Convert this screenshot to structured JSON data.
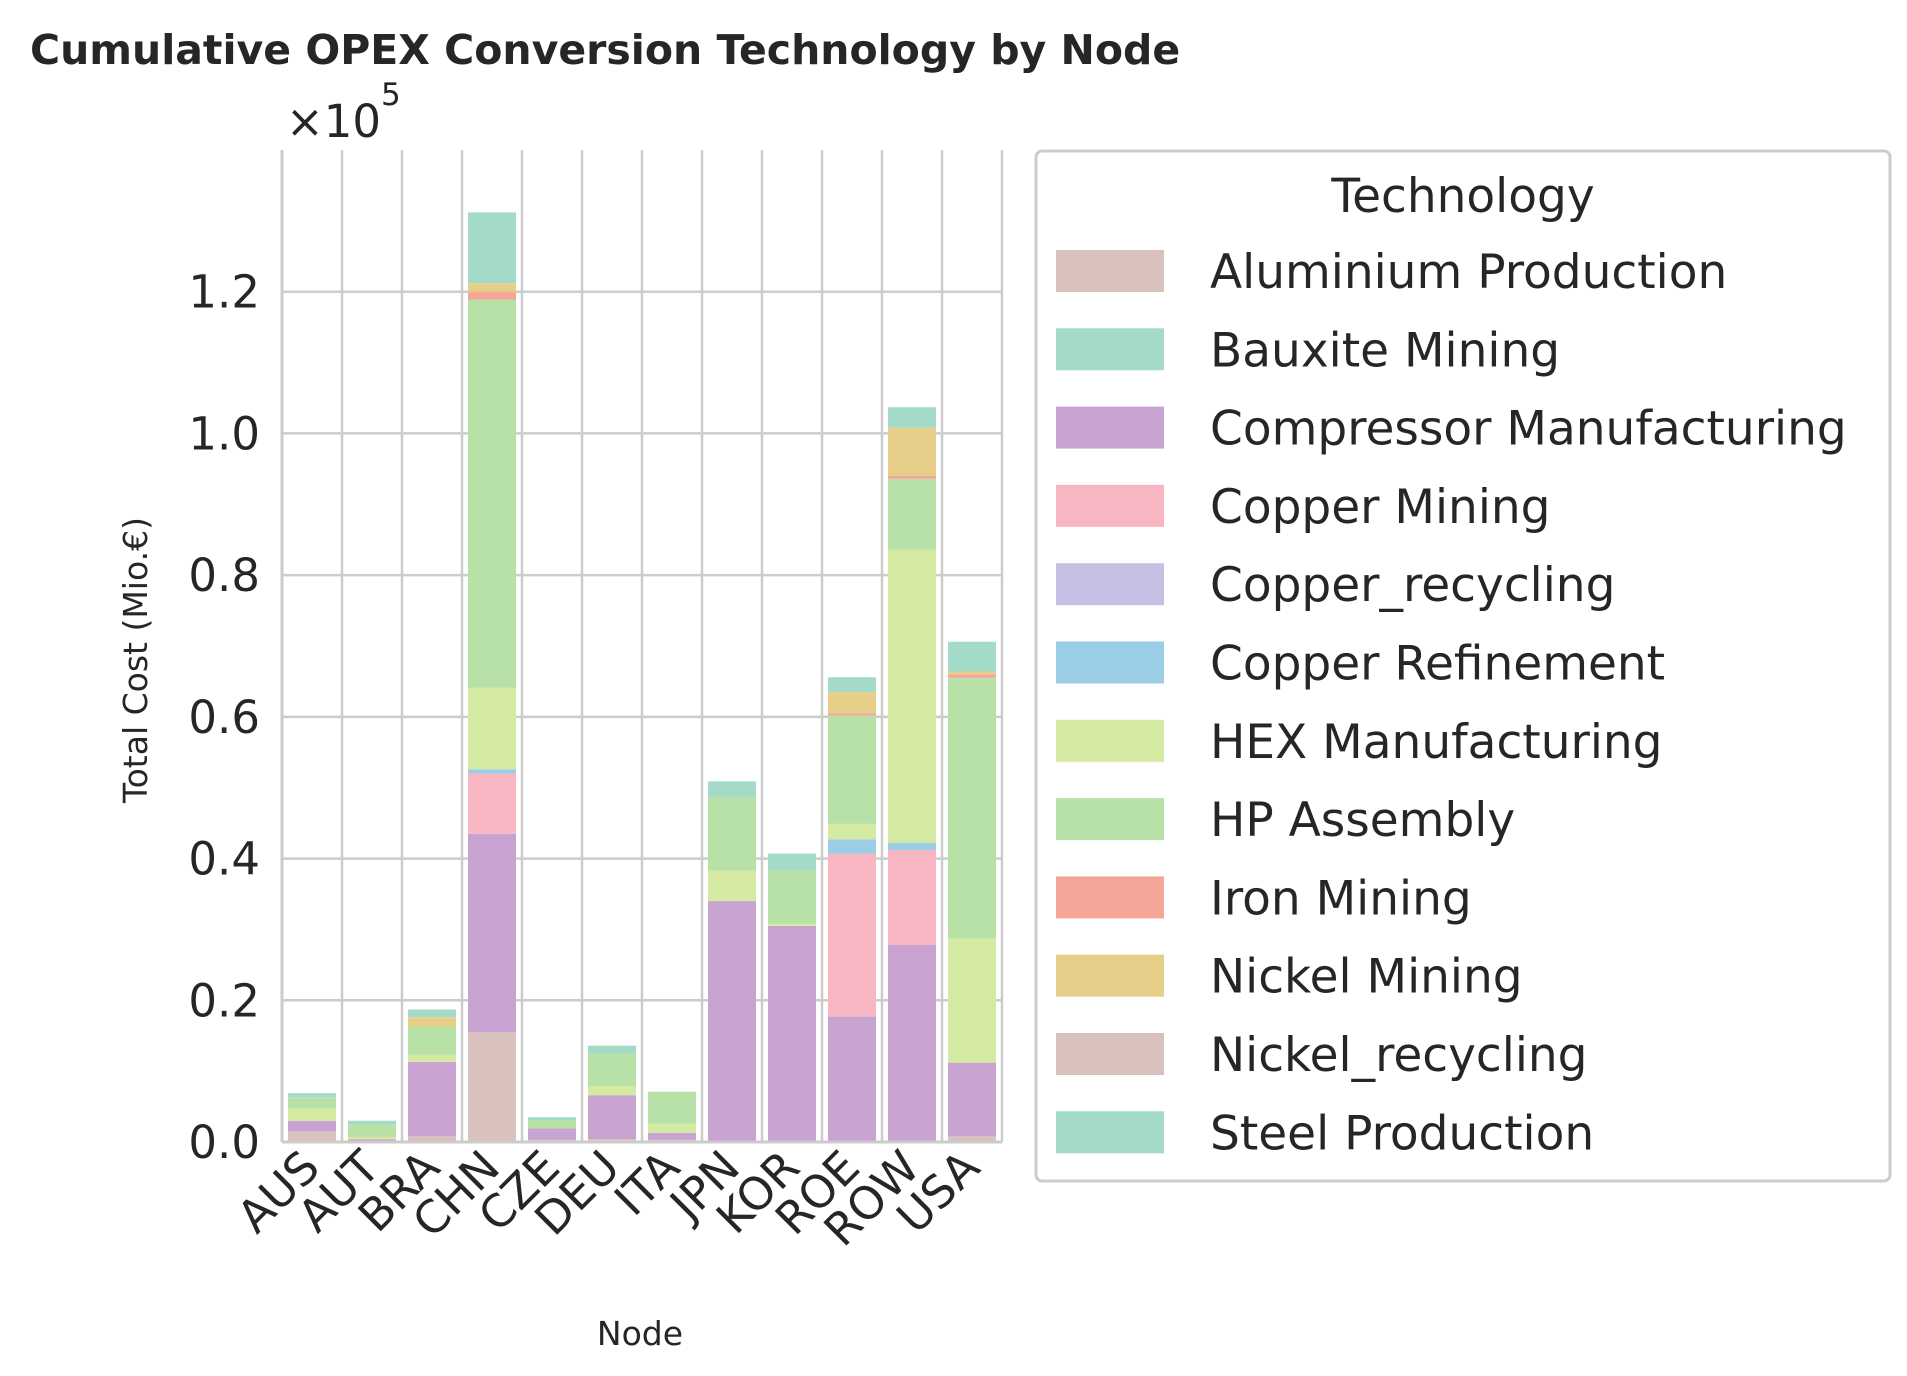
{
  "chart_data": {
    "type": "bar",
    "stacked": true,
    "title": "Cumulative OPEX Conversion Technology by Node",
    "xlabel": "Node",
    "ylabel": "Total Cost (Mio.€)",
    "y_scale_label": "×10",
    "y_scale_exponent": "5",
    "ylim": [
      0,
      140000
    ],
    "yticks": [
      0,
      20000,
      40000,
      60000,
      80000,
      100000,
      120000
    ],
    "ytick_labels": [
      "0.0",
      "0.2",
      "0.4",
      "0.6",
      "0.8",
      "1.0",
      "1.2"
    ],
    "grid": true,
    "legend_title": "Technology",
    "legend_position": "right, outside plot",
    "categories": [
      "AUS",
      "AUT",
      "BRA",
      "CHN",
      "CZE",
      "DEU",
      "ITA",
      "JPN",
      "KOR",
      "ROE",
      "ROW",
      "USA"
    ],
    "series": [
      {
        "name": "Aluminium Production",
        "color": "#d9c2bd",
        "values": [
          1500,
          200,
          800,
          15500,
          300,
          400,
          300,
          0,
          0,
          0,
          0,
          800
        ]
      },
      {
        "name": "Bauxite Mining",
        "color": "#a3dbc8",
        "values": [
          0,
          0,
          0,
          0,
          0,
          0,
          0,
          0,
          0,
          0,
          0,
          0
        ]
      },
      {
        "name": "Compressor Manufacturing",
        "color": "#c8a2d0",
        "values": [
          1500,
          200,
          10500,
          28000,
          1600,
          6200,
          1000,
          34000,
          30500,
          17700,
          27800,
          10400
        ]
      },
      {
        "name": "Copper Mining",
        "color": "#f8b6c3",
        "values": [
          0,
          0,
          0,
          8500,
          0,
          0,
          0,
          0,
          0,
          23000,
          13400,
          0
        ]
      },
      {
        "name": "Copper_recycling",
        "color": "#c4c0e4",
        "values": [
          0,
          0,
          0,
          0,
          0,
          0,
          0,
          0,
          0,
          0,
          0,
          0
        ]
      },
      {
        "name": "Copper Refinement",
        "color": "#9ccde6",
        "values": [
          0,
          0,
          0,
          600,
          0,
          0,
          0,
          0,
          0,
          2000,
          1000,
          0
        ]
      },
      {
        "name": "HEX Manufacturing",
        "color": "#d4e9a1",
        "values": [
          1700,
          300,
          1000,
          11500,
          0,
          1300,
          1300,
          4300,
          300,
          2200,
          41400,
          17500
        ]
      },
      {
        "name": "HP Assembly",
        "color": "#b7e1a6",
        "values": [
          1600,
          1800,
          4000,
          54800,
          1200,
          4600,
          4500,
          10400,
          7500,
          15300,
          10000,
          36800
        ]
      },
      {
        "name": "Iron Mining",
        "color": "#f4a698",
        "values": [
          0,
          0,
          0,
          1100,
          0,
          0,
          0,
          0,
          0,
          300,
          400,
          500
        ]
      },
      {
        "name": "Nickel Mining",
        "color": "#e7cf89",
        "values": [
          0,
          0,
          1300,
          1200,
          0,
          0,
          0,
          0,
          0,
          3000,
          6800,
          400
        ]
      },
      {
        "name": "Nickel_recycling",
        "color": "#d9c2bd",
        "values": [
          0,
          0,
          0,
          0,
          0,
          0,
          0,
          0,
          0,
          0,
          0,
          0
        ]
      },
      {
        "name": "Steel Production",
        "color": "#a3dbc8",
        "values": [
          600,
          500,
          1100,
          10000,
          400,
          1100,
          0,
          2200,
          2400,
          2100,
          2900,
          4200
        ]
      }
    ]
  }
}
